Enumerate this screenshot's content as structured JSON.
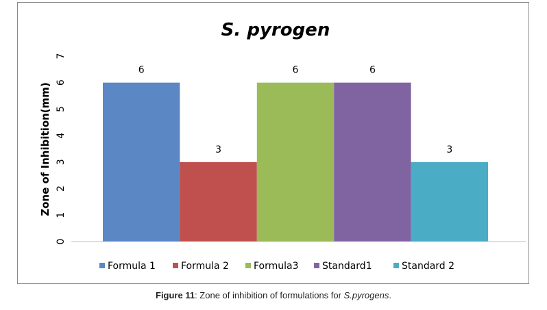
{
  "chart_data": {
    "type": "bar",
    "title": "S. pyrogen",
    "xlabel": "",
    "ylabel": "Zone of Inhibition(mm)",
    "ylim": [
      0,
      7
    ],
    "yticks": [
      "0",
      "1",
      "2",
      "3",
      "4",
      "5",
      "6",
      "7"
    ],
    "grid": false,
    "legend_position": "bottom",
    "series": [
      {
        "name": "Formula 1",
        "values": [
          6
        ],
        "color": "#5b87c5"
      },
      {
        "name": "Formula 2",
        "values": [
          3
        ],
        "color": "#c0504d"
      },
      {
        "name": "Formula3",
        "values": [
          6
        ],
        "color": "#9bbb59"
      },
      {
        "name": "Standard1",
        "values": [
          6
        ],
        "color": "#8064a2"
      },
      {
        "name": "Standard 2",
        "values": [
          3
        ],
        "color": "#4bacc6"
      }
    ],
    "data_labels": [
      "6",
      "3",
      "6",
      "6",
      "3"
    ]
  },
  "caption": {
    "label": "Figure 11",
    "text": ": Zone of inhibition of formulations for ",
    "species": "S.pyrogens",
    "end": "."
  }
}
